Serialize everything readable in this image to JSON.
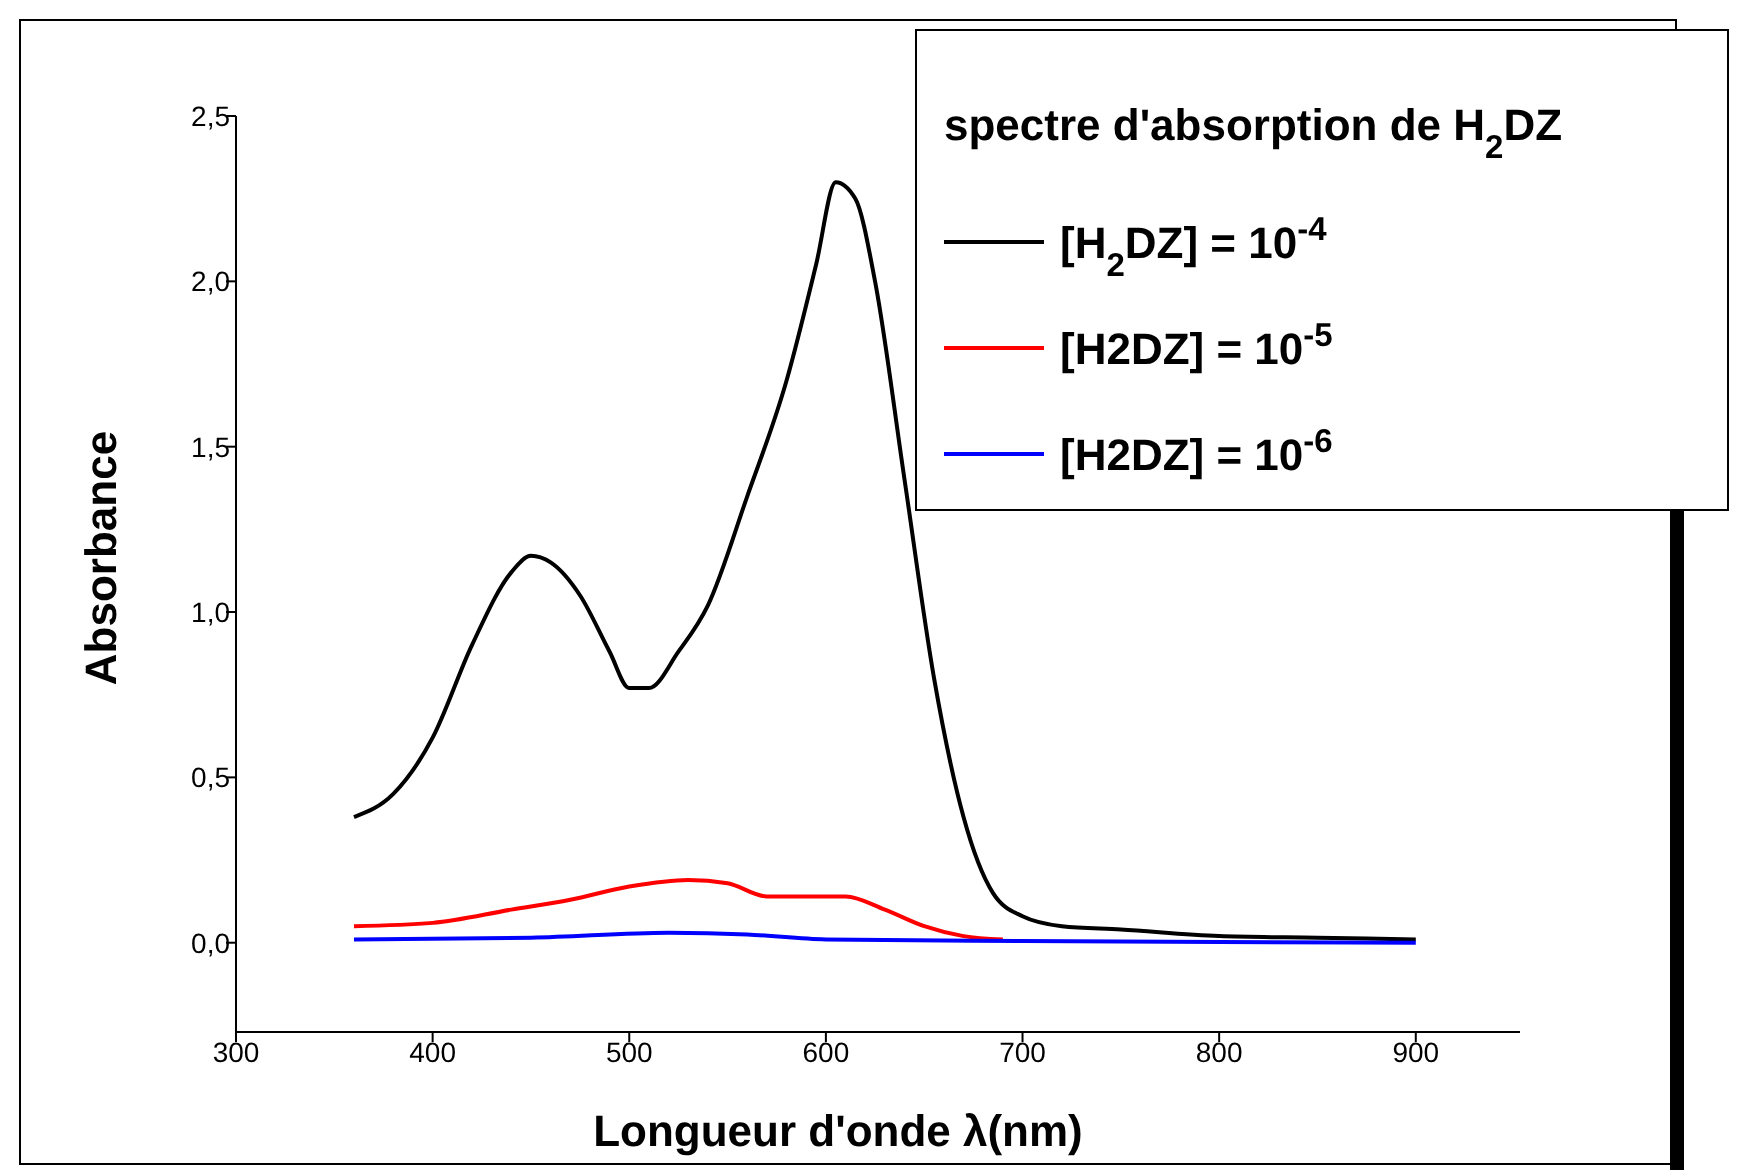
{
  "chart_data": {
    "type": "line",
    "xlabel": "Longueur d'onde λ(nm)",
    "ylabel": "Absorbance",
    "legend_title": "spectre d'absorption de H$_{2}$DZ",
    "legend": "top right",
    "grid": false,
    "line_style": "solid",
    "marker": "none",
    "xlim": [
      300,
      953
    ],
    "xticks": [
      300,
      400,
      500,
      600,
      700,
      800,
      900
    ],
    "ylim": [
      -0.27,
      2.5
    ],
    "yticks": [
      {
        "value": 0,
        "label": "0,0"
      },
      {
        "value": 0.5,
        "label": "0,5"
      },
      {
        "value": 1,
        "label": "1,0"
      },
      {
        "value": 1.5,
        "label": "1,5"
      },
      {
        "value": 2,
        "label": "2,0"
      },
      {
        "value": 2.5,
        "label": "2,5"
      }
    ],
    "series": [
      {
        "name": "[H$_{2}$DZ] = 10$^{-4}$",
        "color": "#000000",
        "x": [
          360,
          380,
          400,
          420,
          440,
          450,
          460,
          475,
          490,
          500,
          510,
          525,
          540,
          560,
          580,
          595,
          605,
          615,
          625,
          640,
          655,
          670,
          685,
          700,
          720,
          750,
          800,
          850,
          900
        ],
        "values": [
          0.38,
          0.45,
          0.62,
          0.9,
          1.12,
          1.17,
          1.15,
          1.05,
          0.88,
          0.77,
          0.77,
          0.88,
          1.02,
          1.35,
          1.7,
          2.05,
          2.3,
          2.25,
          2.0,
          1.4,
          0.8,
          0.38,
          0.15,
          0.08,
          0.05,
          0.04,
          0.02,
          0.015,
          0.01
        ]
      },
      {
        "name": "[H2DZ] = 10$^{-5}$",
        "color": "#ff0000",
        "x": [
          360,
          400,
          440,
          470,
          500,
          530,
          550,
          570,
          590,
          610,
          630,
          650,
          670,
          690
        ],
        "values": [
          0.05,
          0.06,
          0.1,
          0.13,
          0.17,
          0.19,
          0.18,
          0.14,
          0.14,
          0.14,
          0.1,
          0.05,
          0.02,
          0.01
        ]
      },
      {
        "name": "[H2DZ] = 10$^{-6}$",
        "color": "#0000ff",
        "x": [
          360,
          450,
          520,
          560,
          600,
          700,
          800,
          900
        ],
        "values": [
          0.01,
          0.015,
          0.03,
          0.025,
          0.01,
          0.005,
          0.002,
          0.0
        ]
      }
    ]
  }
}
